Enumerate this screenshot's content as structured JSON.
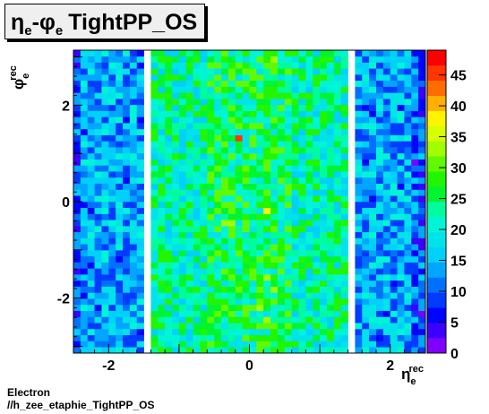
{
  "chart_data": {
    "type": "heatmap",
    "title": {
      "eta": "η",
      "eta_sub": "e",
      "dash": "-",
      "phi": "φ",
      "phi_sub": "e",
      "text": "TightPP_OS"
    },
    "xlabel": {
      "symbol": "η",
      "sub": "e",
      "sup": "rec"
    },
    "ylabel": {
      "symbol": "φ",
      "sub": "e",
      "sup": "rec"
    },
    "xlim": [
      -2.5,
      2.5
    ],
    "ylim": [
      -3.14,
      3.14
    ],
    "xticks": [
      -2,
      0,
      2
    ],
    "yticks": [
      -2,
      0,
      2
    ],
    "zlim": [
      0,
      49
    ],
    "colorbar_ticks": [
      0,
      5,
      10,
      15,
      20,
      25,
      30,
      35,
      40,
      45
    ],
    "gaps_eta": [
      [
        -1.52,
        -1.37
      ],
      [
        1.37,
        1.52
      ]
    ],
    "nbins_x": 50,
    "nbins_y": 50,
    "mean_counts": {
      "outer": 14,
      "inner": 22,
      "center": 25
    },
    "hot_bins": [
      {
        "eta": -0.15,
        "phi": 1.35,
        "z": 45
      },
      {
        "eta": 0.45,
        "phi": 0.5,
        "z": 30
      },
      {
        "eta": 0.25,
        "phi": -0.15,
        "z": 38
      },
      {
        "eta": -0.3,
        "phi": -0.5,
        "z": 32
      },
      {
        "eta": -0.55,
        "phi": -2.45,
        "z": 30
      },
      {
        "eta": 0.25,
        "phi": -2.45,
        "z": 32
      }
    ]
  },
  "footer": {
    "line1": "Electron",
    "line2": "//h_zee_etaphie_TightPP_OS"
  }
}
